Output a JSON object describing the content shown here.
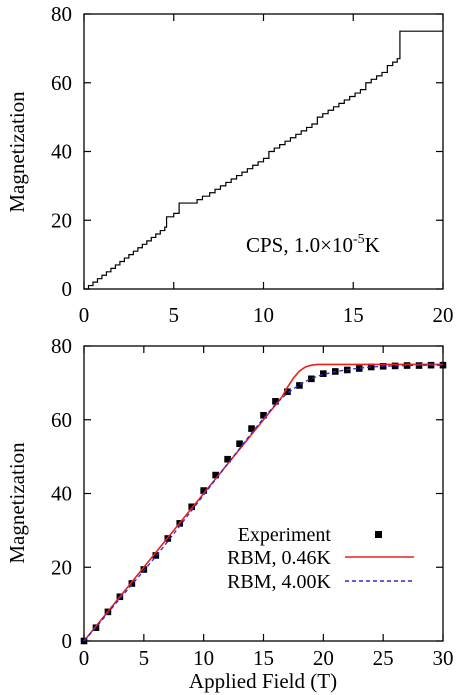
{
  "chart_data": [
    {
      "type": "line",
      "ylabel": "Magnetization",
      "xlabel": "",
      "xlim": [
        0,
        20
      ],
      "ylim": [
        0,
        80
      ],
      "xticks": [
        0,
        5,
        10,
        15,
        20
      ],
      "yticks": [
        0,
        20,
        40,
        60,
        80
      ],
      "xtick_position": "bottom",
      "annotation": {
        "text": "CPS, 1.0×10",
        "sup": "-5",
        "unit": "K"
      },
      "legend": "none",
      "grid": false,
      "series": [
        {
          "style": "step",
          "color": "#000000",
          "x": [
            0.0,
            0.25,
            0.5,
            0.75,
            1.0,
            1.25,
            1.5,
            1.75,
            2.0,
            2.25,
            2.5,
            2.75,
            3.0,
            3.25,
            3.5,
            3.75,
            4.0,
            4.25,
            4.5,
            4.6,
            5.0,
            5.3,
            5.55,
            6.3,
            6.6,
            7.0,
            7.3,
            7.6,
            7.9,
            8.2,
            8.5,
            8.8,
            9.1,
            9.4,
            9.7,
            10.0,
            10.3,
            10.6,
            10.9,
            11.2,
            11.5,
            11.8,
            12.1,
            12.4,
            12.7,
            13.0,
            13.3,
            13.6,
            13.9,
            14.2,
            14.5,
            14.8,
            15.1,
            15.4,
            15.7,
            16.0,
            16.3,
            16.6,
            16.9,
            17.2,
            17.45,
            17.6,
            20.0
          ],
          "y": [
            0,
            1,
            2,
            3,
            4,
            5,
            6,
            7,
            8,
            9,
            10,
            11,
            12,
            13,
            14,
            15,
            16,
            17,
            18,
            21,
            22,
            25,
            25,
            26,
            27,
            28,
            29,
            30,
            31,
            32,
            33,
            34,
            35,
            36,
            37,
            38,
            40,
            41,
            42,
            43,
            44,
            45,
            46,
            47,
            48,
            50,
            51,
            52,
            53,
            54,
            55,
            56,
            57,
            58,
            60,
            61,
            62,
            63,
            65,
            66,
            67,
            75,
            75
          ]
        }
      ]
    },
    {
      "type": "line",
      "xlabel": "Applied Field (T)",
      "ylabel": "Magnetization",
      "xlim": [
        0,
        30
      ],
      "ylim": [
        0,
        80
      ],
      "xticks": [
        0,
        5,
        10,
        15,
        20,
        25,
        30
      ],
      "yticks": [
        0,
        20,
        40,
        60,
        80
      ],
      "legend": "bottom-right",
      "grid": false,
      "series": [
        {
          "name": "Experiment",
          "style": "markers",
          "color": "#000000",
          "x": [
            0,
            1,
            2,
            3,
            4,
            5,
            6,
            7,
            8,
            9,
            10,
            11,
            12,
            13,
            14,
            15,
            16,
            17,
            18,
            19,
            20,
            21,
            22,
            23,
            24,
            25,
            26,
            27,
            28,
            29,
            30
          ],
          "y": [
            0,
            3.6,
            7.9,
            12.0,
            15.6,
            19.4,
            23.2,
            27.8,
            31.9,
            36.4,
            40.8,
            45.0,
            49.3,
            53.5,
            57.6,
            61.2,
            65.0,
            67.6,
            69.3,
            71.1,
            72.5,
            73.1,
            73.5,
            73.9,
            74.3,
            74.5,
            74.6,
            74.7,
            74.7,
            74.8,
            74.8
          ]
        },
        {
          "name": "RBM, 0.46K",
          "style": "solid",
          "color": "#e8211d",
          "x": [
            0,
            1,
            2,
            3,
            4,
            5,
            6,
            7,
            8,
            9,
            10,
            11,
            12,
            13,
            14,
            15,
            16,
            16.5,
            17,
            17.5,
            18,
            18.5,
            19,
            19.5,
            20,
            21,
            22,
            24,
            26,
            28,
            30
          ],
          "y": [
            0,
            4.0,
            8.0,
            12.0,
            16.0,
            20.0,
            24.0,
            28.0,
            32.0,
            36.0,
            40.0,
            44.0,
            48.0,
            52.0,
            56.0,
            60.0,
            64.0,
            66.0,
            68.8,
            71.3,
            73.2,
            74.3,
            74.8,
            75.0,
            75.0,
            75.0,
            75.0,
            75.0,
            75.0,
            75.0,
            75.0
          ]
        },
        {
          "name": "RBM, 4.00K",
          "style": "dashed",
          "color": "#2a2ad8",
          "x": [
            0,
            1,
            2,
            3,
            4,
            5,
            6,
            7,
            8,
            9,
            10,
            11,
            12,
            13,
            14,
            15,
            16,
            17,
            18,
            19,
            20,
            21,
            22,
            23,
            24,
            25,
            26,
            27,
            28,
            29,
            30
          ],
          "y": [
            0,
            3.7,
            7.6,
            11.5,
            15.3,
            19.1,
            22.9,
            27.0,
            31.2,
            35.4,
            39.6,
            43.8,
            48.0,
            52.2,
            56.4,
            60.4,
            64.2,
            67.2,
            69.5,
            71.2,
            72.3,
            73.0,
            73.6,
            74.0,
            74.3,
            74.5,
            74.6,
            74.7,
            74.8,
            74.8,
            74.8
          ]
        }
      ]
    }
  ]
}
